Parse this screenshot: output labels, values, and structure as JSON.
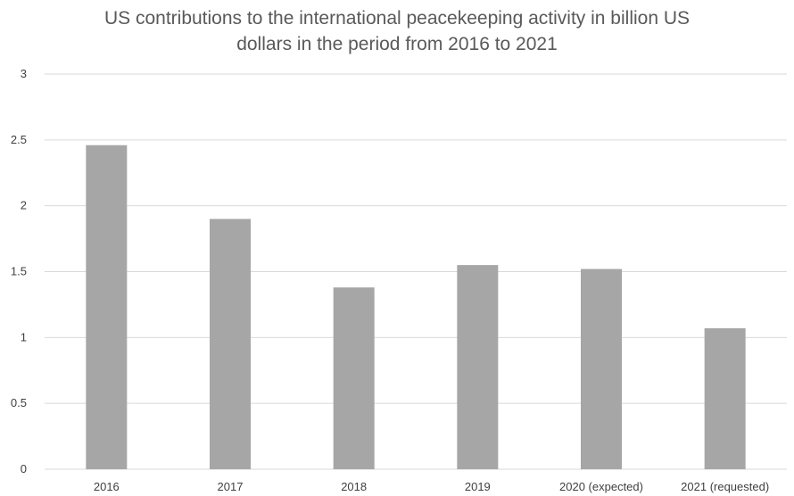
{
  "chart_data": {
    "type": "bar",
    "title": "US contributions to the international peacekeeping activity in billion US\ndollars in the period from 2016 to 2021",
    "xlabel": "",
    "ylabel": "",
    "categories": [
      "2016",
      "2017",
      "2018",
      "2019",
      "2020 (expected)",
      "2021 (requested)"
    ],
    "values": [
      2.46,
      1.9,
      1.38,
      1.55,
      1.52,
      1.07
    ],
    "ylim": [
      0,
      3
    ],
    "yticks": [
      "0",
      "0.5",
      "1",
      "1.5",
      "2",
      "2.5",
      "3"
    ],
    "grid": true,
    "legend": "none",
    "bar_color": "#a6a6a6",
    "grid_color": "#d9d9d9"
  }
}
